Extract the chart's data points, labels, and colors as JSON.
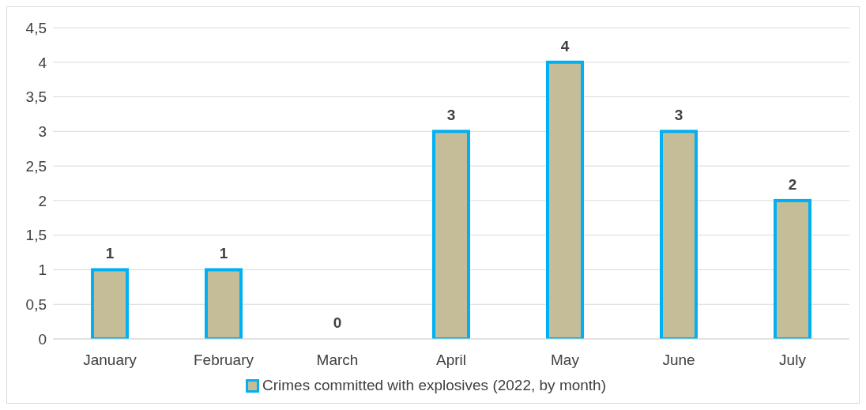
{
  "chart_data": {
    "type": "bar",
    "categories": [
      "January",
      "February",
      "March",
      "April",
      "May",
      "June",
      "July"
    ],
    "series": [
      {
        "name": "Crimes committed with explosives (2022, by month)",
        "color": "#c4bd97",
        "values": [
          1,
          1,
          0,
          3,
          4,
          3,
          2
        ]
      }
    ],
    "ylim": [
      0,
      4.5
    ],
    "yticks": [
      0,
      {
        "value": 0.5,
        "label": "0,5"
      },
      1,
      {
        "value": 1.5,
        "label": "1,5"
      },
      2,
      {
        "value": 2.5,
        "label": "2,5"
      },
      3,
      {
        "value": 3.5,
        "label": "3,5"
      },
      4,
      {
        "value": 4.5,
        "label": "4,5"
      }
    ],
    "grid": "y",
    "legend": "bottom",
    "data_labels": true
  }
}
